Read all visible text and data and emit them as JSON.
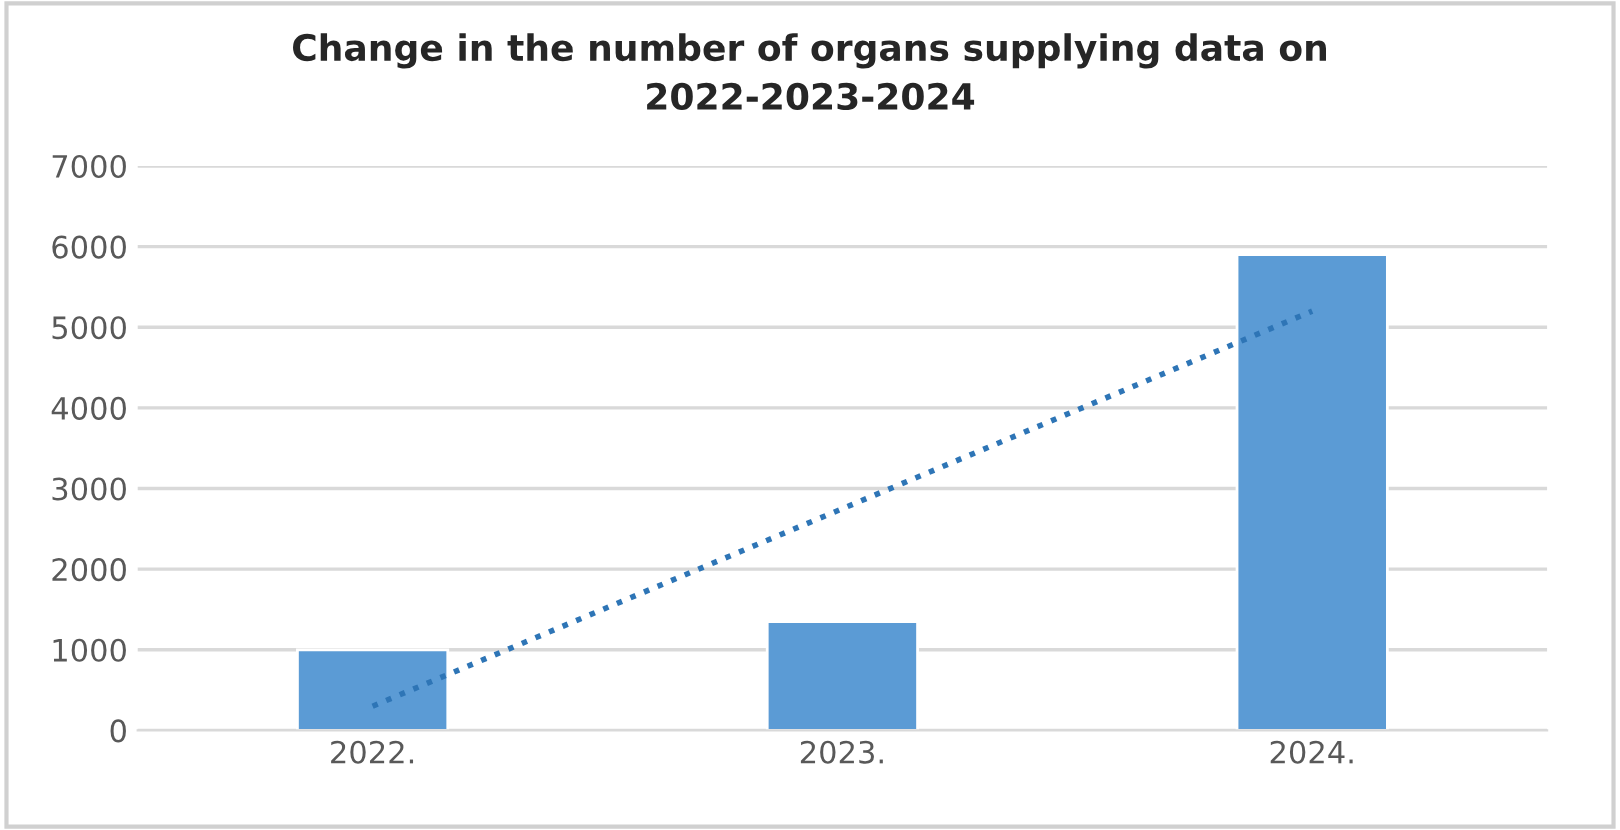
{
  "chart_data": {
    "type": "bar",
    "title": "Change in the number of organs supplying data on\n2022-2023-2024",
    "categories": [
      "2022.",
      "2023.",
      "2024."
    ],
    "series": [
      {
        "color": "#5b9bd5",
        "values": [
          1000,
          1350,
          5900
        ]
      },
      {
        "type": "line",
        "color": "#2e75b6",
        "line_style": "dotted",
        "values": [
          300,
          2750,
          5200
        ]
      }
    ],
    "ylim": [
      0,
      7000
    ],
    "yticks": [
      0,
      1000,
      2000,
      3000,
      4000,
      5000,
      6000,
      7000
    ],
    "grid": "y"
  }
}
